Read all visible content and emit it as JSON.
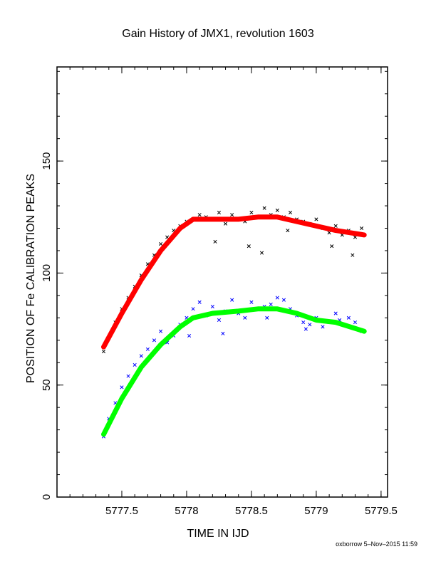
{
  "chart_data": {
    "type": "scatter",
    "title": "Gain History of JMX1, revolution 1603",
    "xlabel": "TIME IN IJD",
    "ylabel": "POSITION OF Fe CALIBRATION PEAKS",
    "xlim": [
      5777.0,
      5779.55
    ],
    "ylim": [
      0,
      192
    ],
    "xticks": [
      5777.5,
      5778,
      5778.5,
      5779,
      5779.5
    ],
    "xtick_labels": [
      "5777.5",
      "5778",
      "5778.5",
      "5779",
      "5779.5"
    ],
    "yticks": [
      0,
      50,
      100,
      150
    ],
    "ytick_labels": [
      "0",
      "50",
      "100",
      "150"
    ],
    "grid": false,
    "legend": "none",
    "footer": "oxborrow  5–Nov–2015 11:59",
    "series": [
      {
        "kind": "points",
        "color": "#000000",
        "x": [
          5777.36,
          5777.4,
          5777.45,
          5777.5,
          5777.55,
          5777.6,
          5777.65,
          5777.7,
          5777.75,
          5777.8,
          5777.85,
          5777.9,
          5777.95,
          5778.0,
          5778.05,
          5778.1,
          5778.15,
          5778.2,
          5778.25,
          5778.3,
          5778.35,
          5778.4,
          5778.45,
          5778.5,
          5778.55,
          5778.6,
          5778.65,
          5778.7,
          5778.75,
          5778.8,
          5778.85,
          5778.9,
          5778.95,
          5779.0,
          5779.05,
          5779.1,
          5779.15,
          5779.2,
          5779.25,
          5779.3,
          5779.35,
          5778.22,
          5778.48,
          5778.58,
          5778.78,
          5779.12,
          5779.28
        ],
        "y": [
          65,
          71,
          78,
          84,
          89,
          94,
          99,
          104,
          108,
          113,
          116,
          119,
          121,
          123,
          124,
          126,
          125,
          124,
          127,
          122,
          126,
          124,
          123,
          127,
          125,
          129,
          126,
          128,
          125,
          127,
          124,
          123,
          122,
          124,
          120,
          118,
          121,
          117,
          119,
          116,
          120,
          114,
          112,
          109,
          119,
          112,
          108
        ]
      },
      {
        "kind": "fit",
        "color": "#ff0000",
        "x": [
          5777.36,
          5777.5,
          5777.65,
          5777.8,
          5777.95,
          5778.05,
          5778.2,
          5778.4,
          5778.55,
          5778.7,
          5778.85,
          5779.0,
          5779.15,
          5779.37
        ],
        "y": [
          67,
          82,
          97,
          110,
          120,
          124,
          124,
          124,
          125,
          125,
          123,
          121,
          119,
          117
        ]
      },
      {
        "kind": "points",
        "color": "#0000ff",
        "x": [
          5777.36,
          5777.4,
          5777.45,
          5777.5,
          5777.55,
          5777.6,
          5777.65,
          5777.7,
          5777.75,
          5777.8,
          5777.85,
          5777.9,
          5777.95,
          5778.0,
          5778.05,
          5778.1,
          5778.15,
          5778.2,
          5778.25,
          5778.3,
          5778.35,
          5778.4,
          5778.45,
          5778.5,
          5778.55,
          5778.6,
          5778.65,
          5778.7,
          5778.75,
          5778.8,
          5778.85,
          5778.9,
          5778.95,
          5779.0,
          5779.05,
          5779.1,
          5779.15,
          5779.2,
          5779.25,
          5779.3,
          5779.35,
          5778.02,
          5778.28,
          5778.62,
          5778.92,
          5779.18
        ],
        "y": [
          27,
          35,
          42,
          49,
          54,
          59,
          63,
          66,
          70,
          74,
          69,
          72,
          77,
          80,
          84,
          87,
          81,
          85,
          79,
          83,
          88,
          82,
          80,
          87,
          84,
          85,
          86,
          89,
          88,
          84,
          81,
          78,
          77,
          80,
          76,
          78,
          82,
          77,
          80,
          78,
          74,
          72,
          73,
          80,
          75,
          79
        ]
      },
      {
        "kind": "fit",
        "color": "#00ff00",
        "x": [
          5777.36,
          5777.5,
          5777.65,
          5777.8,
          5777.95,
          5778.05,
          5778.2,
          5778.4,
          5778.55,
          5778.7,
          5778.85,
          5779.0,
          5779.15,
          5779.37
        ],
        "y": [
          28,
          44,
          58,
          68,
          76,
          80,
          82,
          83,
          84,
          84,
          82,
          79,
          78,
          74
        ]
      }
    ]
  }
}
